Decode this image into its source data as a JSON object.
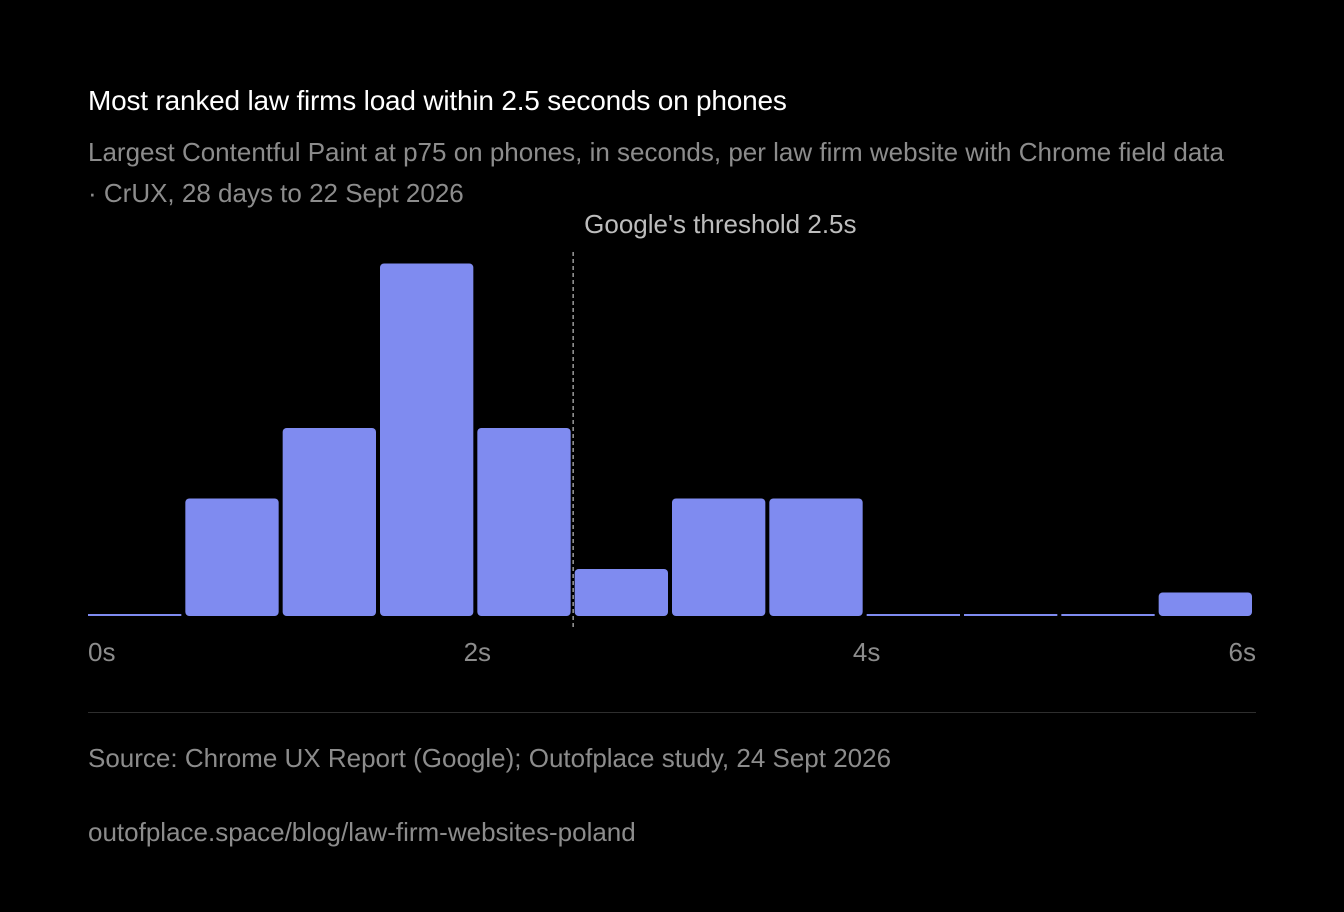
{
  "header": {
    "title": "Most ranked law firms load within 2.5 seconds on phones",
    "subtitle": "Largest Contentful Paint at p75 on phones, in seconds, per law firm website with Chrome field data · CrUX, 28 days to 22 Sept 2026"
  },
  "footer": {
    "source": "Source: Chrome UX Report (Google); Outofplace study, 24 Sept 2026",
    "url": "outofplace.space/blog/law-firm-websites-poland"
  },
  "colors": {
    "background": "#000000",
    "bar": "#7f8bf0",
    "text": "#ffffff",
    "muted_text": "#8c8c8c",
    "threshold_line": "#9a9a9a"
  },
  "chart_data": {
    "type": "bar",
    "bin_width": 0.5,
    "bins": [
      0,
      0.5,
      1,
      1.5,
      2,
      2.5,
      3,
      3.5,
      4,
      4.5,
      5,
      5.5
    ],
    "values": [
      0,
      5,
      8,
      15,
      8,
      2,
      5,
      5,
      0,
      0,
      0,
      1
    ],
    "xlim": [
      0,
      6
    ],
    "x_ticks": [
      {
        "value": 0,
        "label": "0s"
      },
      {
        "value": 2,
        "label": "2s"
      },
      {
        "value": 4,
        "label": "4s"
      },
      {
        "value": 6,
        "label": "6s"
      }
    ],
    "threshold": {
      "value": 2.5,
      "label": "Google's threshold 2.5s"
    },
    "title": "Most ranked law firms load within 2.5 seconds on phones",
    "xlabel": "",
    "ylabel": "",
    "grid": false
  }
}
